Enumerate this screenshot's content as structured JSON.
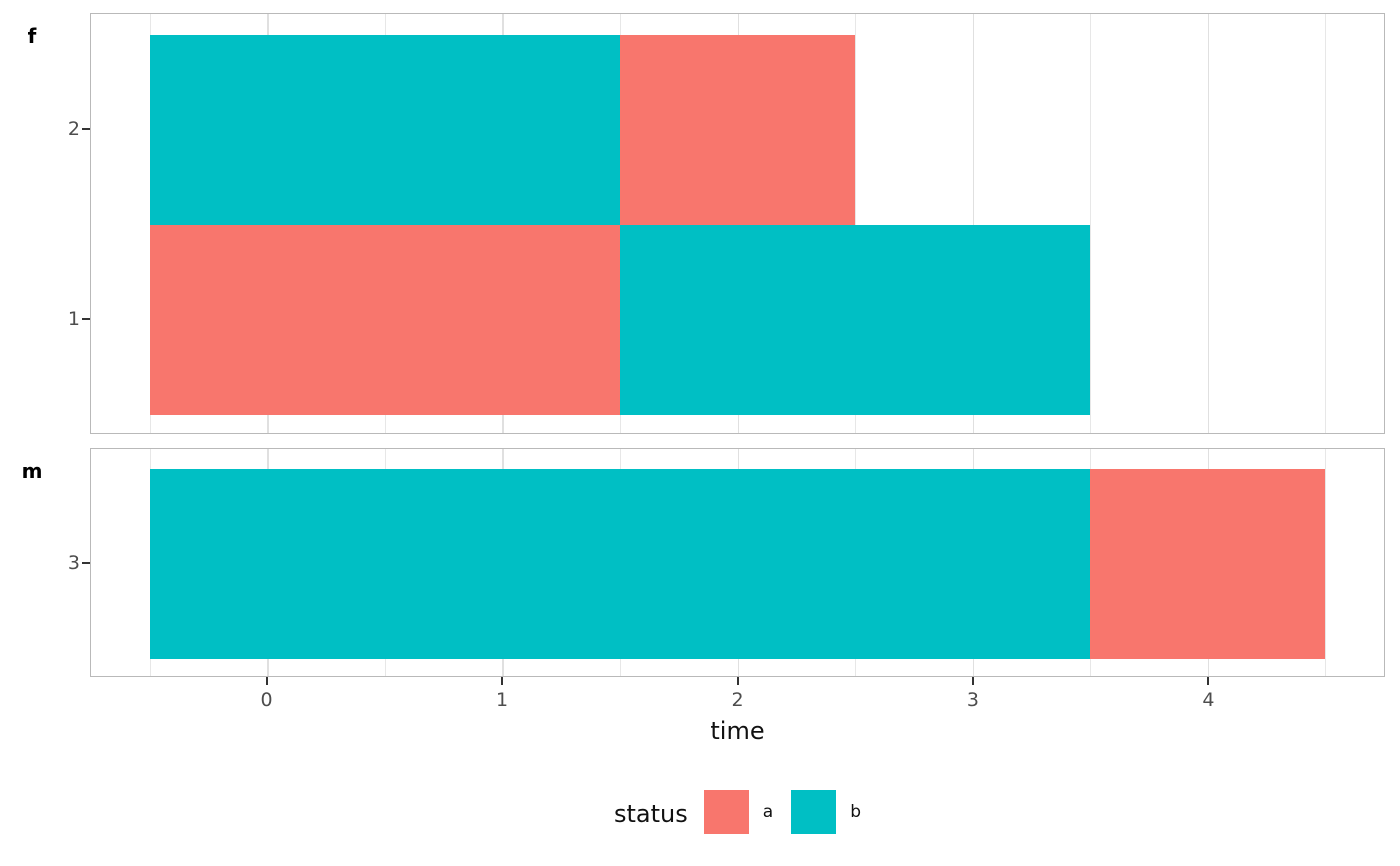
{
  "chart_data": {
    "type": "bar",
    "orientation": "horizontal",
    "stacked": true,
    "title": "",
    "xlabel": "time",
    "ylabel": "",
    "xlim": [
      -0.75,
      4.75
    ],
    "x_ticks": [
      0,
      1,
      2,
      3,
      4
    ],
    "x_minor_ticks": [
      -0.5,
      0.5,
      1.5,
      2.5,
      3.5,
      4.5
    ],
    "grid": true,
    "colors": {
      "a": "#F8766D",
      "b": "#00BFC4"
    },
    "facets": [
      {
        "label": "f",
        "rows": [
          {
            "y": "2",
            "segments": [
              {
                "status": "b",
                "start": -0.5,
                "end": 1.5
              },
              {
                "status": "a",
                "start": 1.5,
                "end": 2.5
              }
            ]
          },
          {
            "y": "1",
            "segments": [
              {
                "status": "a",
                "start": -0.5,
                "end": 1.5
              },
              {
                "status": "b",
                "start": 1.5,
                "end": 3.5
              }
            ]
          }
        ]
      },
      {
        "label": "m",
        "rows": [
          {
            "y": "3",
            "segments": [
              {
                "status": "b",
                "start": -0.5,
                "end": 3.5
              },
              {
                "status": "a",
                "start": 3.5,
                "end": 4.5
              }
            ]
          }
        ]
      }
    ],
    "legend": {
      "title": "status",
      "position": "bottom",
      "items": [
        {
          "label": "a",
          "color": "#F8766D"
        },
        {
          "label": "b",
          "color": "#00BFC4"
        }
      ]
    }
  }
}
